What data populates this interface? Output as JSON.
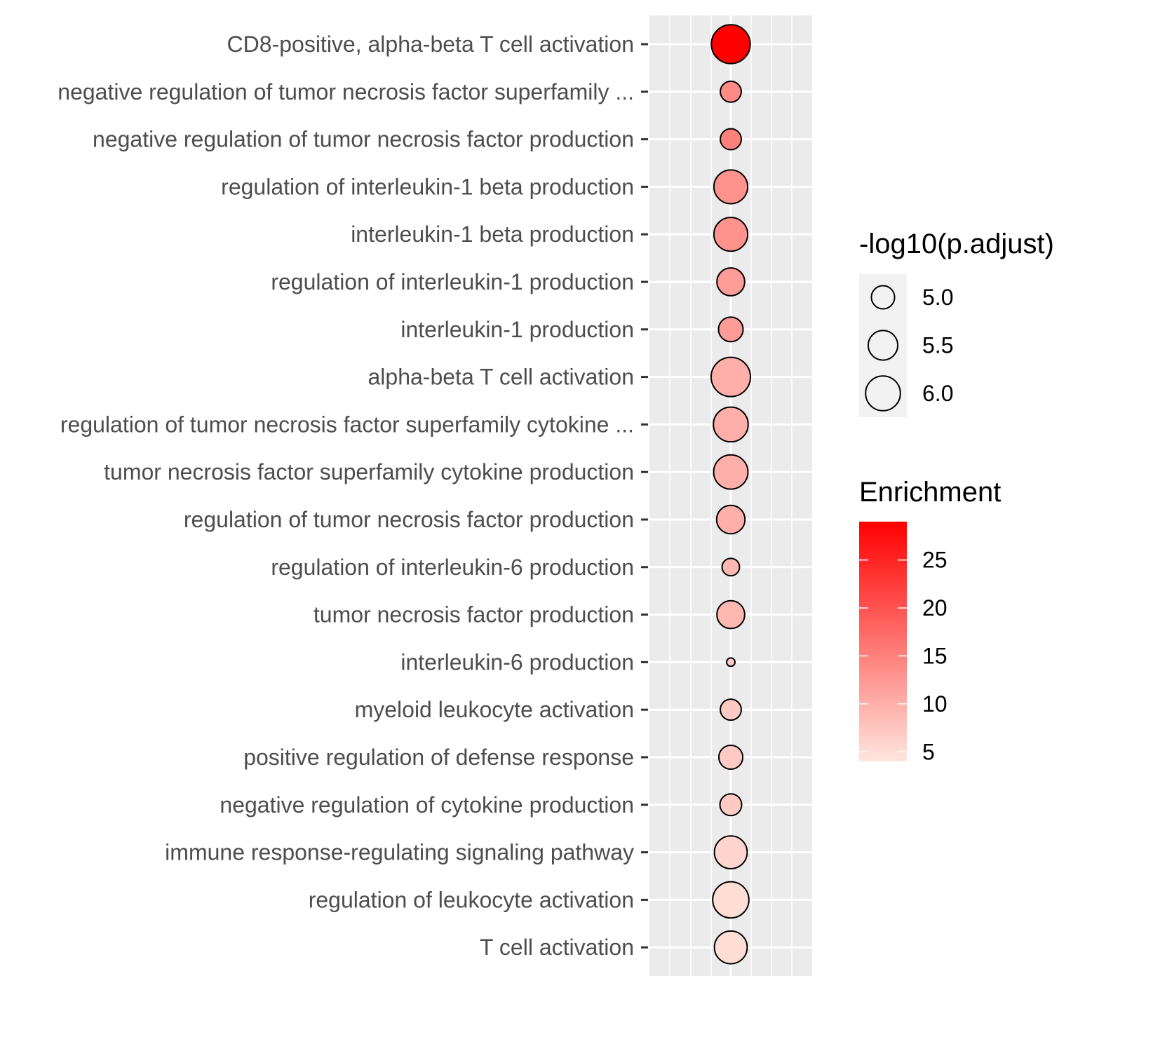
{
  "chart_data": {
    "type": "scatter",
    "title": "",
    "xlabel": "",
    "ylabel": "",
    "categories": [
      "CD8-positive, alpha-beta T cell activation",
      "negative regulation of tumor necrosis factor superfamily ...",
      "negative regulation of tumor necrosis factor production",
      "regulation of interleukin-1 beta production",
      "interleukin-1 beta production",
      "regulation of interleukin-1 production",
      "interleukin-1 production",
      "alpha-beta T cell activation",
      "regulation of tumor necrosis factor superfamily cytokine ...",
      "tumor necrosis factor superfamily cytokine production",
      "regulation of tumor necrosis factor production",
      "regulation of interleukin-6 production",
      "tumor necrosis factor production",
      "interleukin-6 production",
      "myeloid leukocyte activation",
      "positive regulation of defense response",
      "negative regulation of cytokine production",
      "immune response-regulating signaling pathway",
      "regulation of leukocyte activation",
      "T cell activation"
    ],
    "series": [
      {
        "neg_log10_p_adjust": [
          6.45,
          4.85,
          4.85,
          5.9,
          5.9,
          5.35,
          5.1,
          6.5,
          6.0,
          5.95,
          5.4,
          4.65,
          5.35,
          4.3,
          4.85,
          5.05,
          4.9,
          5.8,
          6.15,
          5.8
        ],
        "enrichment": [
          29,
          14,
          15,
          13,
          13,
          12,
          12,
          10,
          10,
          10,
          10,
          9,
          9,
          7,
          7,
          7,
          7,
          6,
          5,
          5
        ]
      }
    ],
    "legend": {
      "size": {
        "title": "-log10(p.adjust)",
        "breaks": [
          5.0,
          5.5,
          6.0
        ],
        "labels": [
          "5.0",
          "5.5",
          "6.0"
        ]
      },
      "color": {
        "title": "Enrichment",
        "min": 4,
        "max": 29,
        "breaks": [
          5,
          10,
          15,
          20,
          25
        ],
        "labels": [
          "5",
          "10",
          "15",
          "20",
          "25"
        ],
        "low_color": "#FEE6DE",
        "high_color": "#FF0000"
      },
      "placement": "right"
    },
    "grid": true,
    "panel_background": "#EBEBEB",
    "axis_text_color": "#4D4D4D"
  }
}
